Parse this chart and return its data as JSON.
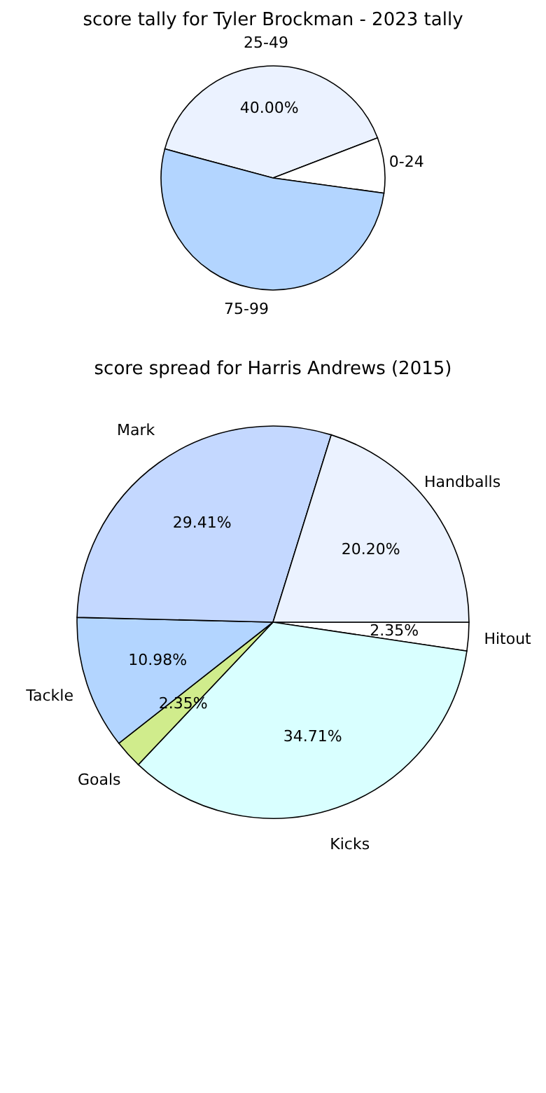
{
  "chart_data": [
    {
      "type": "pie",
      "title": "score tally for Tyler Brockman - 2023 tally",
      "categories": [
        "25-49",
        "0-24",
        "75-99"
      ],
      "values": [
        40,
        8,
        52
      ],
      "colors": [
        "#ebf2ff",
        "#ffffff",
        "#b3d5ff"
      ],
      "value_labels": [
        "40.00%",
        null,
        null
      ]
    },
    {
      "type": "pie",
      "title": "score spread for Harris Andrews (2015)",
      "categories": [
        "Hitout",
        "Kicks",
        "Goals",
        "Tackle",
        "Mark",
        "Handballs"
      ],
      "values": [
        2.35,
        34.71,
        2.35,
        10.98,
        29.41,
        20.2
      ],
      "colors": [
        "#ffffff",
        "#d9ffff",
        "#d0ec8c",
        "#b3d5ff",
        "#c4d8ff",
        "#ebf2ff"
      ],
      "value_labels": [
        "2.35%",
        "34.71%",
        "2.35%",
        "10.98%",
        "29.41%",
        "20.20%"
      ]
    }
  ]
}
